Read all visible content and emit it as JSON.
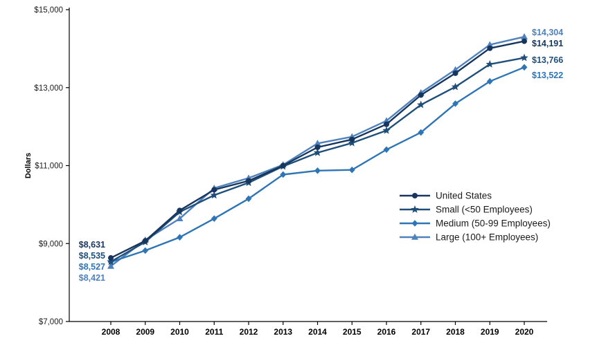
{
  "chart_data": {
    "type": "line",
    "title": "",
    "ylabel": "Dollars",
    "x_labels": [
      "2008",
      "2009",
      "2010",
      "2011",
      "2012",
      "2013",
      "2014",
      "2015",
      "2016",
      "2017",
      "2018",
      "2019",
      "2020"
    ],
    "ylim": [
      7000,
      15000
    ],
    "yticks": [
      7000,
      9000,
      11000,
      13000,
      15000
    ],
    "ytick_labels": [
      "$7,000",
      "$9,000",
      "$11,000",
      "$13,000",
      "$15,000"
    ],
    "grid": false,
    "legend_position": "inside-right",
    "series": [
      {
        "id": "united-states",
        "name": "United States",
        "marker": "circle",
        "color": "#17365D",
        "values": [
          8631,
          9070,
          9850,
          10380,
          10610,
          11000,
          11470,
          11670,
          12060,
          12810,
          13370,
          14010,
          14191
        ],
        "start_label": "$8,631",
        "end_label": "$14,191"
      },
      {
        "id": "small",
        "name": "Small (<50 Employees)",
        "marker": "star",
        "color": "#1F4E79",
        "values": [
          8535,
          9040,
          9810,
          10240,
          10560,
          10980,
          11330,
          11580,
          11900,
          12560,
          13020,
          13600,
          13766
        ],
        "start_label": "$8,535",
        "end_label": "$13,766"
      },
      {
        "id": "medium",
        "name": "Medium (50-99 Employees)",
        "marker": "diamond",
        "color": "#2E75B6",
        "values": [
          8527,
          8820,
          9160,
          9640,
          10150,
          10770,
          10870,
          10890,
          11410,
          11850,
          12590,
          13160,
          13522
        ],
        "start_label": "$8,527",
        "end_label": "$13,522"
      },
      {
        "id": "large",
        "name": "Large (100+ Employees)",
        "marker": "triangle",
        "color": "#4F81BD",
        "values": [
          8421,
          9090,
          9640,
          10420,
          10680,
          11020,
          11570,
          11740,
          12150,
          12870,
          13460,
          14100,
          14304
        ],
        "start_label": "$8,421",
        "end_label": "$14,304"
      }
    ]
  }
}
